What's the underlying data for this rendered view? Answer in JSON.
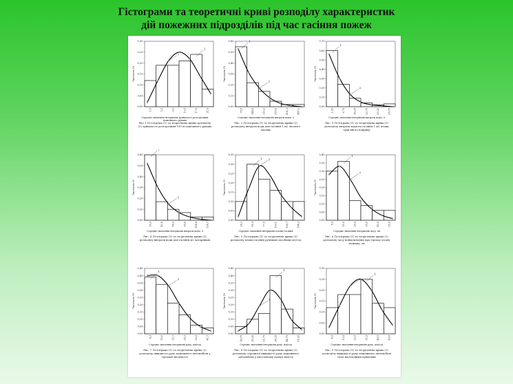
{
  "title": {
    "line1": "Гістограми та теоретичні криві розподілу характеристик",
    "line2": "дій пожежних  підрозділів під час гасіння пожеж"
  },
  "ylabel": "Частость Pi",
  "chart_data": [
    {
      "type": "bar",
      "ylim": [
        0,
        0.3
      ],
      "yticks": [
        "0,30",
        "0,25",
        "0,20",
        "0,15",
        "0,10",
        "0,05",
        "0,00"
      ],
      "values": [
        0.12,
        0.19,
        0.19,
        0.21,
        0.24,
        0.08
      ],
      "curve": [
        0.02,
        0.12,
        0.21,
        0.25,
        0.22,
        0.14,
        0.06
      ],
      "xticks": [
        "1,5",
        "5,5",
        "9,5",
        "13,5",
        "17,5",
        "21,5"
      ],
      "xlabel": "Середнє значення інтервалів тривалості розгортання пожежного рукава",
      "caption": "Рис.1 Гістограма (1) та теоретична крива розподілу (2) тривалості розгортання 100 м пожежного рукава"
    },
    {
      "type": "bar",
      "ylim": [
        0,
        0.6
      ],
      "yticks": [
        "0,60",
        "0,50",
        "0,40",
        "0,30",
        "0,20",
        "0,10",
        "0,00"
      ],
      "values": [
        0.55,
        0.22,
        0.14,
        0.05,
        0.02,
        0.02
      ],
      "curve": [
        0.53,
        0.31,
        0.17,
        0.08,
        0.03,
        0.01,
        0.0
      ],
      "xticks": [
        "78,8",
        "144,8",
        "210,2",
        "315,8",
        "401,3",
        "487,2"
      ],
      "xlabel": "Середнє значення інтервалів витрати води, л",
      "caption": "Рис. 2 Гістограма (1) та теоретична крива (2) розподілу витрати води для гасіння 1 м2 лісового масиву"
    },
    {
      "type": "bar",
      "ylim": [
        0,
        0.7
      ],
      "yticks": [
        "0,70",
        "0,60",
        "0,50",
        "0,40",
        "0,30",
        "0,20",
        "0,10",
        "0,00"
      ],
      "values": [
        0.6,
        0.24,
        0.09,
        0.04,
        0.02,
        0.03
      ],
      "curve": [
        0.56,
        0.3,
        0.13,
        0.05,
        0.02,
        0.01,
        0.0
      ],
      "xticks": [
        "3,25",
        "9,75",
        "16,25",
        "22,75",
        "29,25",
        "35,75"
      ],
      "xlabel": "Середнє значення інтервалів витрати води, л",
      "caption": "Рис. 3 Гістограма (1) та теоретична крива (2) розподілу витрати води на гасіння 1 м2 площі трав'яного покриву"
    },
    {
      "type": "bar",
      "ylim": [
        0,
        0.6
      ],
      "yticks": [
        "0,60",
        "0,50",
        "0,40",
        "0,30",
        "0,20",
        "0,10",
        "0,00"
      ],
      "values": [
        0.6,
        0.17,
        0.1,
        0.07,
        0.03,
        0.03
      ],
      "curve": [
        0.52,
        0.3,
        0.15,
        0.07,
        0.03,
        0.01,
        0.0
      ],
      "xticks": [
        "18,9",
        "42,8",
        "66,9",
        "90,8",
        "114,8",
        "138,7"
      ],
      "xlabel": "Середнє значення інтервалів витрати води, л",
      "caption": "Рис. 4 Гістограма (1) та теоретична крива (2) розподілу витрати води для гасіння м2 чагарників"
    },
    {
      "type": "bar",
      "ylim": [
        0,
        0.35
      ],
      "yticks": [
        "0,35",
        "0,30",
        "0,25",
        "0,20",
        "0,15",
        "0,10",
        "0,05",
        "0,00"
      ],
      "values": [
        0.1,
        0.3,
        0.22,
        0.16,
        0.1,
        0.1
      ],
      "curve": [
        0.02,
        0.17,
        0.29,
        0.24,
        0.14,
        0.07,
        0.02
      ],
      "xticks": [
        "26,3",
        "51,9",
        "77,5",
        "103,1",
        "128,7",
        "154,3"
      ],
      "xlabel": "Середнє значення інтервалів площі гасіння",
      "caption": "Рис. 5 Гістограма (1) та теоретична крива (2) розподілу площі гасіння ручними засобами м2/год"
    },
    {
      "type": "bar",
      "ylim": [
        0,
        0.4
      ],
      "yticks": [
        "0,40",
        "0,35",
        "0,30",
        "0,25",
        "0,20",
        "0,15",
        "0,10",
        "0,05",
        "0,00"
      ],
      "values": [
        0.3,
        0.36,
        0.12,
        0.09,
        0.06,
        0.06
      ],
      "curve": [
        0.28,
        0.33,
        0.25,
        0.14,
        0.07,
        0.03,
        0.01
      ],
      "xticks": [
        "5,5",
        "15,5",
        "25,5",
        "35,5",
        "45,5",
        "55,5"
      ],
      "xlabel": "Середнє значення інтервалів часу, хв",
      "caption": "Рис. 6 Гістограма (1) та теоретична крива (2) розподілу часу повідомлення про гірську лісову пожежу, хв"
    },
    {
      "type": "bar",
      "ylim": [
        0,
        0.45
      ],
      "yticks": [
        "0,45",
        "0,40",
        "0,35",
        "0,30",
        "0,25",
        "0,20",
        "0,15",
        "0,10",
        "0,05",
        "0,00"
      ],
      "values": [
        0.39,
        0.34,
        0.21,
        0.13,
        0.06,
        0.04
      ],
      "curve": [
        0.4,
        0.4,
        0.33,
        0.21,
        0.11,
        0.05,
        0.02
      ],
      "xticks": [
        "8,3",
        "15,0",
        "21,7",
        "28,3",
        "35,0",
        "41,7"
      ],
      "xlabel": "Середнє значення інтервалів руху, км/год",
      "caption": "Рис. 7 Гістограма (1) та теоретична крива (2) розподілу швидкості руху пожежного автомобіля у гірській місцевості"
    },
    {
      "type": "bar",
      "ylim": [
        0,
        0.45
      ],
      "yticks": [
        "0,45",
        "0,40",
        "0,35",
        "0,30",
        "0,25",
        "0,20",
        "0,15",
        "0,10",
        "0,05",
        "0,00"
      ],
      "values": [
        0.05,
        0.1,
        0.14,
        0.4,
        0.17,
        0.04
      ],
      "curve": [
        0.02,
        0.07,
        0.19,
        0.3,
        0.24,
        0.1,
        0.03
      ],
      "xticks": [
        "18,75",
        "25,25",
        "31,75",
        "38,25",
        "44,75",
        "51,25"
      ],
      "xlabel": "Середнє значення інтервалів руху, км/год",
      "caption": "Рис. 8 Гістограма (1) та теоретична крива (2) розподілу середньої швидкості руху пожежного автомобіля у населеному пункті км/год"
    },
    {
      "type": "bar",
      "ylim": [
        0,
        0.3
      ],
      "yticks": [
        "0,30",
        "0,25",
        "0,20",
        "0,15",
        "0,10",
        "0,05",
        "0,00"
      ],
      "values": [
        0.12,
        0.18,
        0.18,
        0.25,
        0.14,
        0.12
      ],
      "curve": [
        0.03,
        0.13,
        0.22,
        0.25,
        0.2,
        0.11,
        0.04
      ],
      "xticks": [
        "4,5",
        "13,5",
        "22,5",
        "31,5",
        "40,5",
        "49,5"
      ],
      "xlabel": "Середнє значення інтервалів руху, км/год",
      "caption": "Рис. 9 Гістограма (1) та теоретична крива (2) розподілу швидкості руху пожежного автомобіля поза населеними пунктами"
    }
  ]
}
